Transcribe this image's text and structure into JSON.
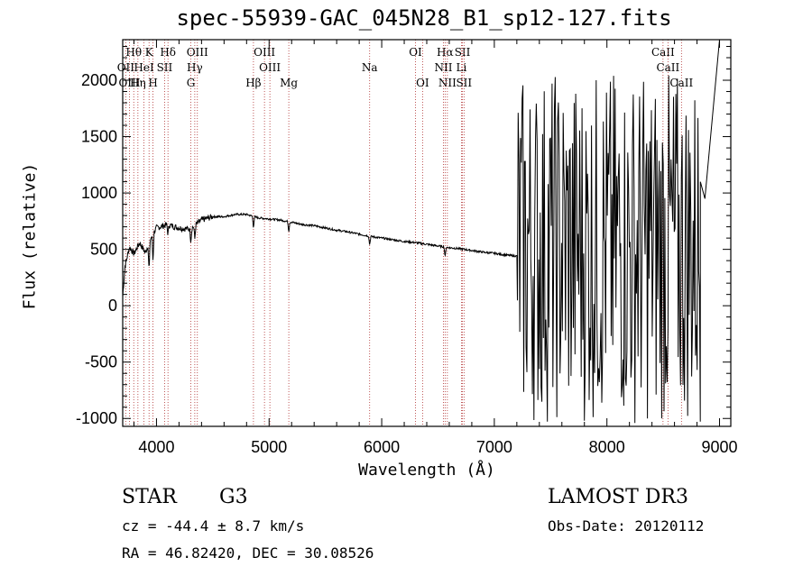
{
  "chart_data": {
    "type": "line",
    "title": "spec-55939-GAC_045N28_B1_sp12-127.fits",
    "xlabel": "Wavelength (Å)",
    "ylabel": "Flux (relative)",
    "xlim": [
      3700,
      9100
    ],
    "ylim": [
      -1070,
      2360
    ],
    "x_ticks": [
      4000,
      5000,
      6000,
      7000,
      8000,
      9000
    ],
    "y_ticks": [
      -1000,
      -500,
      0,
      500,
      1000,
      1500,
      2000
    ],
    "grid": false,
    "continuum": [
      [
        3700,
        80
      ],
      [
        3720,
        350
      ],
      [
        3760,
        520
      ],
      [
        3800,
        460
      ],
      [
        3850,
        560
      ],
      [
        3900,
        470
      ],
      [
        3950,
        600
      ],
      [
        4000,
        690
      ],
      [
        4100,
        720
      ],
      [
        4200,
        690
      ],
      [
        4300,
        680
      ],
      [
        4400,
        760
      ],
      [
        4500,
        790
      ],
      [
        4600,
        790
      ],
      [
        4700,
        810
      ],
      [
        4800,
        810
      ],
      [
        4900,
        780
      ],
      [
        5000,
        770
      ],
      [
        5100,
        760
      ],
      [
        5200,
        740
      ],
      [
        5300,
        720
      ],
      [
        5400,
        710
      ],
      [
        5500,
        690
      ],
      [
        5600,
        670
      ],
      [
        5700,
        655
      ],
      [
        5800,
        635
      ],
      [
        5900,
        615
      ],
      [
        6000,
        600
      ],
      [
        6100,
        585
      ],
      [
        6200,
        570
      ],
      [
        6300,
        560
      ],
      [
        6400,
        545
      ],
      [
        6500,
        530
      ],
      [
        6600,
        515
      ],
      [
        6700,
        505
      ],
      [
        6800,
        490
      ],
      [
        6900,
        475
      ],
      [
        7000,
        465
      ],
      [
        7100,
        450
      ],
      [
        7200,
        440
      ]
    ],
    "noisy_region": {
      "x_range": [
        7200,
        9000
      ],
      "y_range": [
        -1050,
        2360
      ],
      "final_points": [
        [
          8830,
          1100
        ],
        [
          8870,
          950
        ],
        [
          9000,
          2360
        ]
      ]
    },
    "lines": [
      {
        "label": "Hθ",
        "wavelength": 3798,
        "row": 1
      },
      {
        "label": "K",
        "wavelength": 3934,
        "row": 1
      },
      {
        "label": "Hδ",
        "wavelength": 4102,
        "row": 1
      },
      {
        "label": "OIII",
        "wavelength": 4363,
        "row": 1
      },
      {
        "label": "OIII",
        "wavelength": 4959,
        "row": 1
      },
      {
        "label": "OI",
        "wavelength": 6300,
        "row": 1
      },
      {
        "label": "Hα",
        "wavelength": 6563,
        "row": 1
      },
      {
        "label": "SII",
        "wavelength": 6717,
        "row": 1
      },
      {
        "label": "CaII",
        "wavelength": 8498,
        "row": 1
      },
      {
        "label": "OII",
        "wavelength": 3727,
        "row": 2
      },
      {
        "label": "HeI",
        "wavelength": 3889,
        "row": 2
      },
      {
        "label": "SII",
        "wavelength": 4072,
        "row": 2
      },
      {
        "label": "Hγ",
        "wavelength": 4340,
        "row": 2
      },
      {
        "label": "OIII",
        "wavelength": 5007,
        "row": 2
      },
      {
        "label": "Na",
        "wavelength": 5893,
        "row": 2
      },
      {
        "label": "NII",
        "wavelength": 6548,
        "row": 2
      },
      {
        "label": "Li",
        "wavelength": 6708,
        "row": 2
      },
      {
        "label": "CaII",
        "wavelength": 8542,
        "row": 2
      },
      {
        "label": "OIII",
        "wavelength": 3760,
        "row": 3
      },
      {
        "label": "Hη",
        "wavelength": 3835,
        "row": 3
      },
      {
        "label": "H",
        "wavelength": 3969,
        "row": 3
      },
      {
        "label": "G",
        "wavelength": 4305,
        "row": 3
      },
      {
        "label": "Hβ",
        "wavelength": 4861,
        "row": 3
      },
      {
        "label": "Mg",
        "wavelength": 5175,
        "row": 3
      },
      {
        "label": "OI",
        "wavelength": 6363,
        "row": 3
      },
      {
        "label": "NII",
        "wavelength": 6583,
        "row": 3
      },
      {
        "label": "SII",
        "wavelength": 6731,
        "row": 3
      },
      {
        "label": "CaII",
        "wavelength": 8662,
        "row": 3
      }
    ]
  },
  "info": {
    "object_class": "STAR",
    "subclass": "G3",
    "survey": "LAMOST DR3",
    "redshift": "cz = -44.4 ± 8.7 km/s",
    "obs_date": "Obs-Date: 20120112",
    "coords": "RA =  46.82420, DEC =  30.08526"
  }
}
